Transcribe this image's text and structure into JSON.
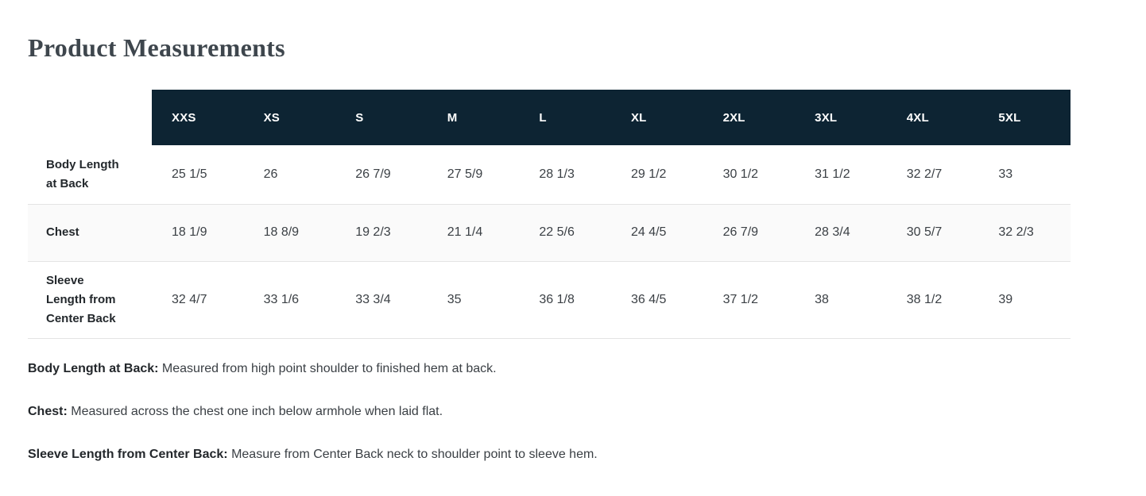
{
  "page": {
    "title": "Product Measurements"
  },
  "table": {
    "sizes": [
      "XXS",
      "XS",
      "S",
      "M",
      "L",
      "XL",
      "2XL",
      "3XL",
      "4XL",
      "5XL"
    ],
    "rows": [
      {
        "label": "Body Length at Back",
        "values": [
          "25 1/5",
          "26",
          "26 7/9",
          "27 5/9",
          "28 1/3",
          "29 1/2",
          "30 1/2",
          "31 1/2",
          "32 2/7",
          "33"
        ]
      },
      {
        "label": "Chest",
        "values": [
          "18 1/9",
          "18 8/9",
          "19 2/3",
          "21 1/4",
          "22 5/6",
          "24 4/5",
          "26 7/9",
          "28 3/4",
          "30 5/7",
          "32 2/3"
        ]
      },
      {
        "label": "Sleeve Length from Center Back",
        "values": [
          "32 4/7",
          "33 1/6",
          "33 3/4",
          "35",
          "36 1/8",
          "36 4/5",
          "37 1/2",
          "38",
          "38 1/2",
          "39"
        ]
      }
    ]
  },
  "notes": [
    {
      "term": "Body Length at Back:",
      "description": "Measured from high point shoulder to finished hem at back."
    },
    {
      "term": "Chest:",
      "description": "Measured across the chest one inch below armhole when laid flat."
    },
    {
      "term": "Sleeve Length from Center Back:",
      "description": "Measure from Center Back neck to shoulder point to sleeve hem."
    }
  ],
  "colors": {
    "header_bg": "#0d2433",
    "header_text": "#ffffff",
    "alt_row_bg": "#fafafa",
    "border": "#e4e4e4"
  }
}
